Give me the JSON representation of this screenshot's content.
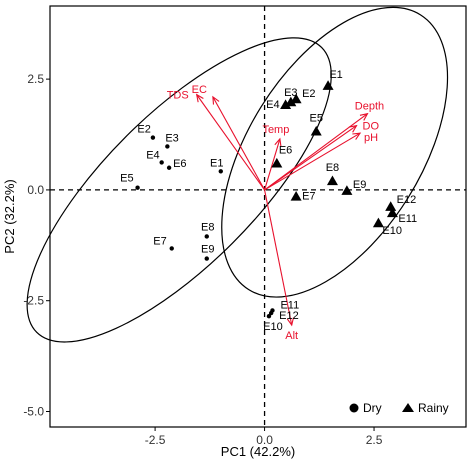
{
  "chart_data": {
    "type": "scatter",
    "xlabel": "PC1 (42.2%)",
    "ylabel": "PC2 (32.2%)",
    "xlim": [
      -4.9,
      4.6
    ],
    "ylim": [
      -5.35,
      4.15
    ],
    "x_ticks": [
      -2.5,
      0.0,
      2.5
    ],
    "x_tick_labels": [
      "-2.5",
      "0.0",
      "2.5"
    ],
    "y_ticks": [
      -5.0,
      -2.5,
      0.0,
      2.5
    ],
    "y_tick_labels": [
      "-5.0",
      "-2.5",
      "0.0",
      "2.5"
    ],
    "grid": false,
    "reference_lines": {
      "x": 0,
      "y": 0,
      "style": "dashed"
    },
    "legend": {
      "position": "bottom-right",
      "items": [
        "Dry",
        "Rainy"
      ]
    },
    "series": [
      {
        "name": "Dry",
        "marker": "circle",
        "points": [
          {
            "label": "E1",
            "x": -1.0,
            "y": 0.42
          },
          {
            "label": "E2",
            "x": -2.55,
            "y": 1.18
          },
          {
            "label": "E3",
            "x": -2.22,
            "y": 0.98
          },
          {
            "label": "E4",
            "x": -2.35,
            "y": 0.62
          },
          {
            "label": "E5",
            "x": -2.9,
            "y": 0.05
          },
          {
            "label": "E6",
            "x": -2.18,
            "y": 0.5
          },
          {
            "label": "E7",
            "x": -2.12,
            "y": -1.32
          },
          {
            "label": "E8",
            "x": -1.32,
            "y": -1.05
          },
          {
            "label": "E9",
            "x": -1.32,
            "y": -1.55
          },
          {
            "label": "E10",
            "x": 0.1,
            "y": -2.85
          },
          {
            "label": "E11",
            "x": 0.18,
            "y": -2.72
          },
          {
            "label": "E12",
            "x": 0.15,
            "y": -2.78
          }
        ]
      },
      {
        "name": "Rainy",
        "marker": "triangle",
        "points": [
          {
            "label": "E1",
            "x": 1.45,
            "y": 2.35
          },
          {
            "label": "E2",
            "x": 0.72,
            "y": 2.05
          },
          {
            "label": "E3",
            "x": 0.6,
            "y": 1.98
          },
          {
            "label": "E4",
            "x": 0.48,
            "y": 1.92
          },
          {
            "label": "E5",
            "x": 1.18,
            "y": 1.32
          },
          {
            "label": "E6",
            "x": 0.28,
            "y": 0.6
          },
          {
            "label": "E7",
            "x": 0.72,
            "y": -0.15
          },
          {
            "label": "E8",
            "x": 1.55,
            "y": 0.2
          },
          {
            "label": "E9",
            "x": 1.88,
            "y": -0.02
          },
          {
            "label": "E10",
            "x": 2.6,
            "y": -0.75
          },
          {
            "label": "E11",
            "x": 2.92,
            "y": -0.52
          },
          {
            "label": "E12",
            "x": 2.88,
            "y": -0.38
          }
        ]
      }
    ],
    "vectors": [
      {
        "label": "EC",
        "x": -1.18,
        "y": 2.1
      },
      {
        "label": "TDS",
        "x": -1.55,
        "y": 2.15
      },
      {
        "label": "Temp",
        "x": 0.35,
        "y": 1.15
      },
      {
        "label": "Depth",
        "x": 2.35,
        "y": 1.72
      },
      {
        "label": "DO",
        "x": 2.1,
        "y": 1.45
      },
      {
        "label": "pH",
        "x": 2.18,
        "y": 1.28
      },
      {
        "label": "Alt",
        "x": 0.62,
        "y": -3.05
      }
    ],
    "ellipses": [
      {
        "group": "Dry",
        "cx": -1.95,
        "cy": 0.0,
        "rx": 4.6,
        "ry": 1.7,
        "angle": -45
      },
      {
        "group": "Rainy",
        "cx": 1.6,
        "cy": 0.85,
        "rx": 3.7,
        "ry": 1.95,
        "angle": -58
      }
    ],
    "colors": {
      "vector": "#e8112d",
      "points": "#000000",
      "axis": "#000000"
    }
  }
}
